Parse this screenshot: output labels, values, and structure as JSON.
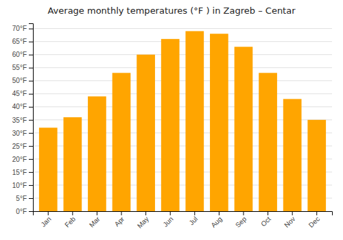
{
  "chart_data": {
    "type": "bar",
    "title": "Average monthly temperatures (°F ) in Zagreb – Centar",
    "categories": [
      "Jan",
      "Feb",
      "Mar",
      "Apr",
      "May",
      "Jun",
      "Jul",
      "Aug",
      "Sep",
      "Oct",
      "Nov",
      "Dec"
    ],
    "values": [
      32,
      36,
      44,
      53,
      60,
      66,
      69,
      68,
      63,
      53,
      43,
      35
    ],
    "color": "#FFA500",
    "ylim": [
      0,
      72
    ],
    "yticks": [
      {
        "value": 0,
        "label": "0°F"
      },
      {
        "value": 5,
        "label": "5°F"
      },
      {
        "value": 10,
        "label": "10°F"
      },
      {
        "value": 15,
        "label": "15°F"
      },
      {
        "value": 20,
        "label": "20°F"
      },
      {
        "value": 25,
        "label": "25°F"
      },
      {
        "value": 30,
        "label": "30°F"
      },
      {
        "value": 35,
        "label": "35°F"
      },
      {
        "value": 40,
        "label": "40°F"
      },
      {
        "value": 45,
        "label": "45°F"
      },
      {
        "value": 50,
        "label": "50°F"
      },
      {
        "value": 55,
        "label": "55°F"
      },
      {
        "value": 60,
        "label": "60°F"
      },
      {
        "value": 65,
        "label": "65°F"
      },
      {
        "value": 70,
        "label": "70°F"
      }
    ],
    "grid": true
  }
}
